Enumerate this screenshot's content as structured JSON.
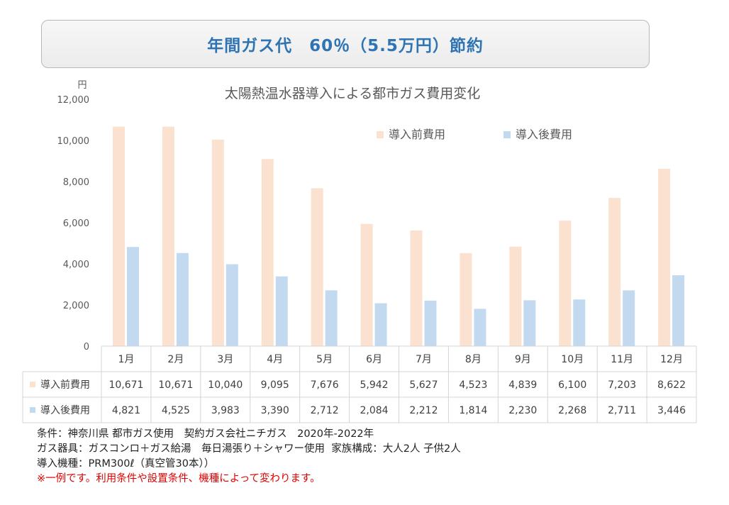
{
  "banner": {
    "text": "年間ガス代　60％（5.5万円）節約"
  },
  "chart_data": {
    "type": "bar",
    "title": "太陽熱温水器導入による都市ガス費用変化",
    "yunit": "円",
    "ylim": [
      0,
      12000
    ],
    "yticks": [
      0,
      2000,
      4000,
      6000,
      8000,
      10000,
      12000
    ],
    "ytick_labels": [
      "0",
      "2,000",
      "4,000",
      "6,000",
      "8,000",
      "10,000",
      "12,000"
    ],
    "grid": false,
    "legend_position": "top-right",
    "categories": [
      "1月",
      "2月",
      "3月",
      "4月",
      "5月",
      "6月",
      "7月",
      "8月",
      "9月",
      "10月",
      "11月",
      "12月"
    ],
    "series": [
      {
        "name": "導入前費用",
        "color": "#fbe2d0",
        "values": [
          10671,
          10671,
          10040,
          9095,
          7676,
          5942,
          5627,
          4523,
          4839,
          6100,
          7203,
          8622
        ],
        "value_labels": [
          "10,671",
          "10,671",
          "10,040",
          "9,095",
          "7,676",
          "5,942",
          "5,627",
          "4,523",
          "4,839",
          "6,100",
          "7,203",
          "8,622"
        ]
      },
      {
        "name": "導入後費用",
        "color": "#c3d9ef",
        "values": [
          4821,
          4525,
          3983,
          3390,
          2712,
          2084,
          2212,
          1814,
          2230,
          2268,
          2711,
          3446
        ],
        "value_labels": [
          "4,821",
          "4,525",
          "3,983",
          "3,390",
          "2,712",
          "2,084",
          "2,212",
          "1,814",
          "2,230",
          "2,268",
          "2,711",
          "3,446"
        ]
      }
    ]
  },
  "notes": {
    "line1": "条件：神奈川県 都市ガス使用　契約ガス会社ニチガス　2020年-2022年",
    "line2": "ガス器具：ガスコンロ＋ガス給湯　毎日湯張り＋シャワー使用  家族構成：大人2人 子供2人",
    "line3": "導入機種：PRM300ℓ（真空管30本））",
    "warning": "※一例です。利用条件や設置条件、機種によって変わります。"
  }
}
